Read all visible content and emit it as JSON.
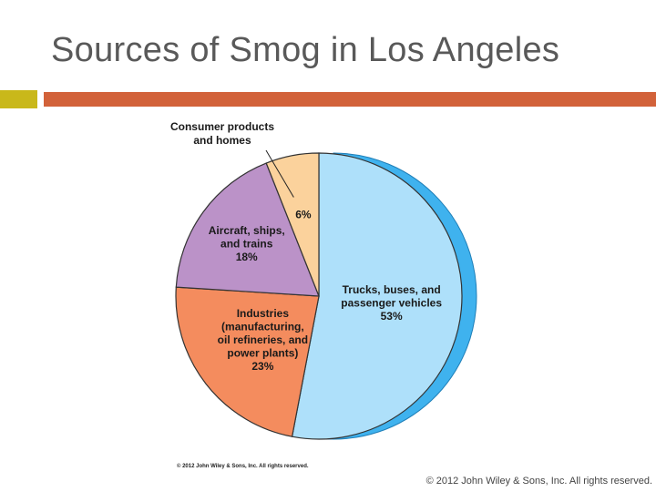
{
  "slide": {
    "title": "Sources of Smog in Los Angeles",
    "footer": "© 2012 John Wiley & Sons, Inc. All rights reserved.",
    "figure_credit": "© 2012 John Wiley & Sons, Inc. All rights reserved.",
    "colors": {
      "accent_square": "#c9b81a",
      "accent_bar": "#d2623a",
      "title": "#595959"
    }
  },
  "chart_data": {
    "type": "pie",
    "slices": [
      {
        "label_lines": [
          "Trucks, buses, and",
          "passenger vehicles",
          "53%"
        ],
        "value": 53,
        "color": "#aee0fa"
      },
      {
        "label_lines": [
          "Industries",
          "(manufacturing,",
          "oil refineries, and",
          "power plants)",
          "23%"
        ],
        "value": 23,
        "color": "#f48c5e"
      },
      {
        "label_lines": [
          "Aircraft, ships,",
          "and trains",
          "18%"
        ],
        "value": 18,
        "color": "#bb92c8"
      },
      {
        "label_lines": [
          "6%"
        ],
        "value": 6,
        "color": "#fbd29c"
      }
    ],
    "callout": {
      "label_lines": [
        "Consumer products",
        "and homes"
      ],
      "slice_index": 3
    },
    "extrusion_color": "#3fb2ee",
    "start_angle_deg": 0,
    "direction": "clockwise"
  }
}
